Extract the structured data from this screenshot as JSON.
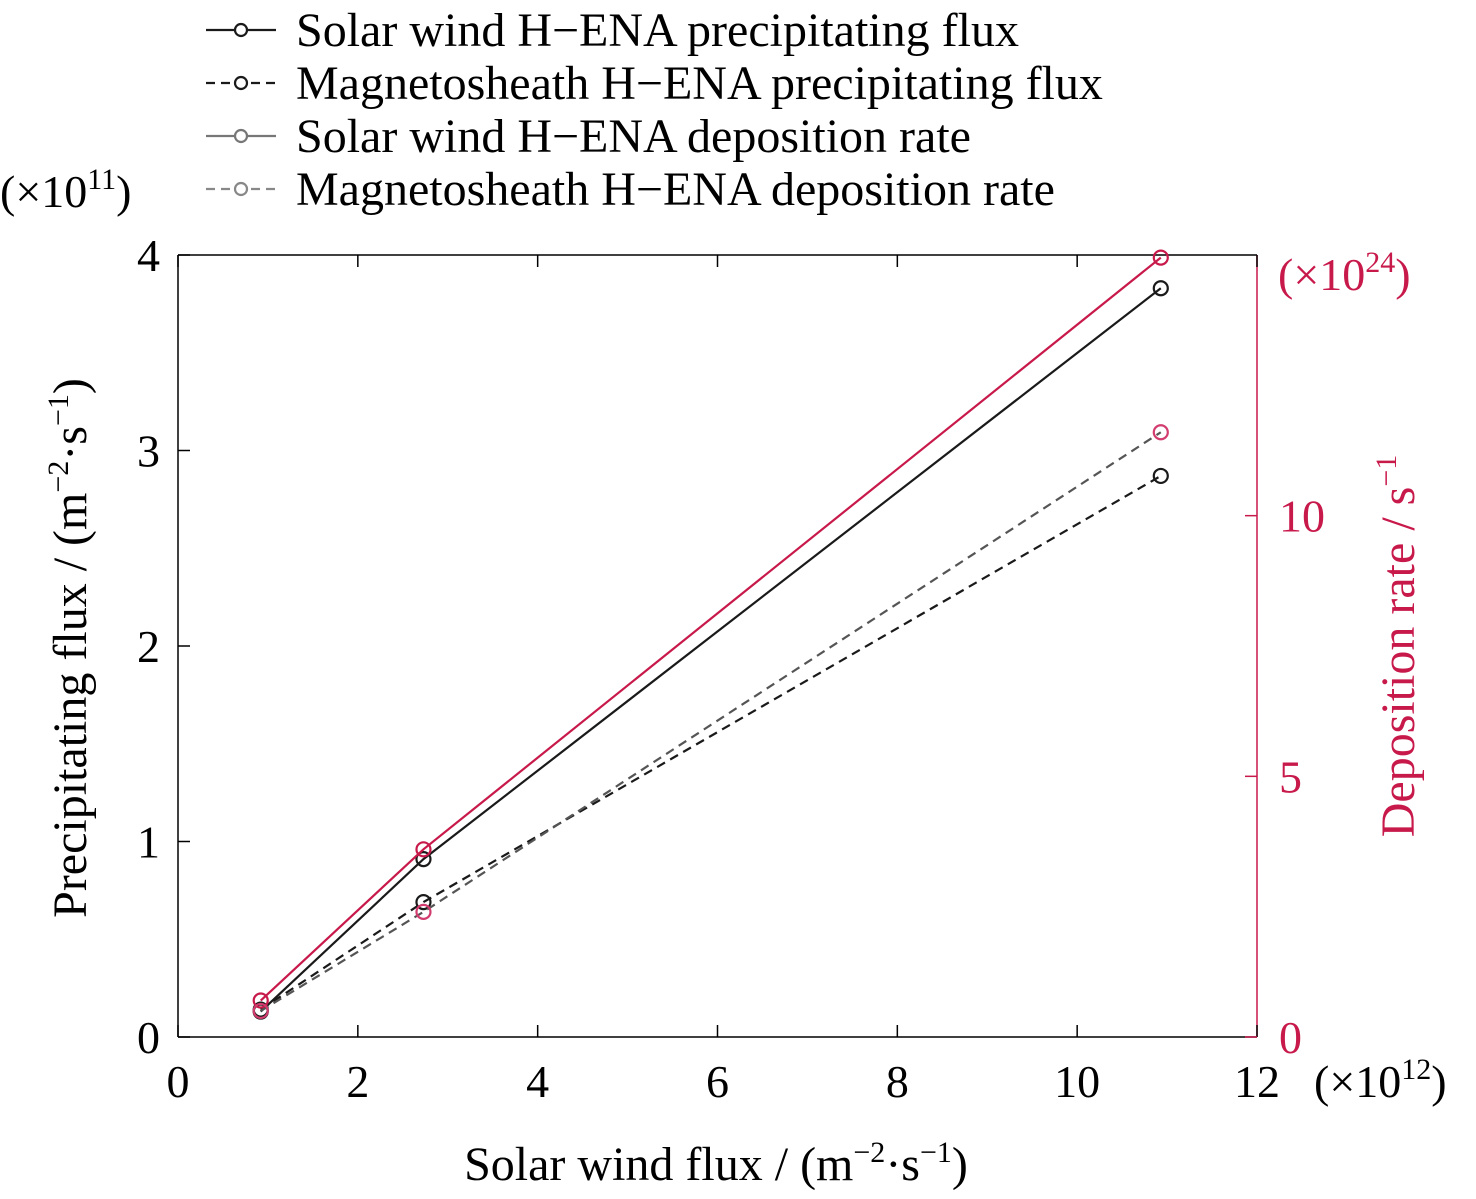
{
  "chart_data": {
    "type": "line",
    "title": "",
    "xlabel": {
      "base": "Solar wind flux / (m",
      "sup1": "−2",
      "mid": "·s",
      "sup2": "−1",
      "end": ")"
    },
    "ylabel_left": {
      "base": "Precipitating flux / (m",
      "sup1": "−2",
      "mid": "·s",
      "sup2": "−1",
      "end": ")"
    },
    "ylabel_right": {
      "base": "Deposition rate / s",
      "sup1": "−1"
    },
    "x_multiplier": {
      "pre": "(×10",
      "exp": "12",
      "post": ")"
    },
    "y_left_multiplier": {
      "pre": "(×10",
      "exp": "11",
      "post": ")"
    },
    "y_right_multiplier": {
      "pre": "(×10",
      "exp": "24",
      "post": ")"
    },
    "xlim": [
      0,
      12
    ],
    "ylim_left": [
      0,
      4
    ],
    "ylim_right": [
      0,
      15
    ],
    "x_ticks": [
      "0",
      "2",
      "4",
      "6",
      "8",
      "10",
      "12"
    ],
    "y_left_ticks": [
      "0",
      "1",
      "2",
      "3",
      "4"
    ],
    "y_right_ticks": [
      "0",
      "5",
      "10"
    ],
    "grid": false,
    "legend_position": "top",
    "series": [
      {
        "name": "Solar wind H−ENA precipitating flux",
        "axis": "left",
        "style": "solid",
        "color": "#1a1a1a",
        "x": [
          0.92,
          2.73,
          10.93
        ],
        "y": [
          0.13,
          0.91,
          3.83
        ]
      },
      {
        "name": "Magnetosheath H−ENA precipitating flux",
        "axis": "left",
        "style": "dashed",
        "color": "#1a1a1a",
        "x": [
          0.92,
          2.73,
          10.93
        ],
        "y": [
          0.14,
          0.69,
          2.87
        ]
      },
      {
        "name": "Solar wind H−ENA deposition rate",
        "axis": "right",
        "style": "solid",
        "color": "#c8194b",
        "legend_color": "#777777",
        "x": [
          0.92,
          2.73,
          10.93
        ],
        "y": [
          0.7,
          3.6,
          14.95
        ]
      },
      {
        "name": "Magnetosheath H−ENA deposition rate",
        "axis": "right",
        "style": "dashed",
        "color": "#555555",
        "legend_color": "#888888",
        "marker_color": "#d23c6e",
        "x": [
          0.92,
          2.73,
          10.93
        ],
        "y": [
          0.5,
          2.4,
          11.6
        ]
      }
    ],
    "colors": {
      "axis": "#000000",
      "right_axis_text": "#c8194b"
    }
  }
}
